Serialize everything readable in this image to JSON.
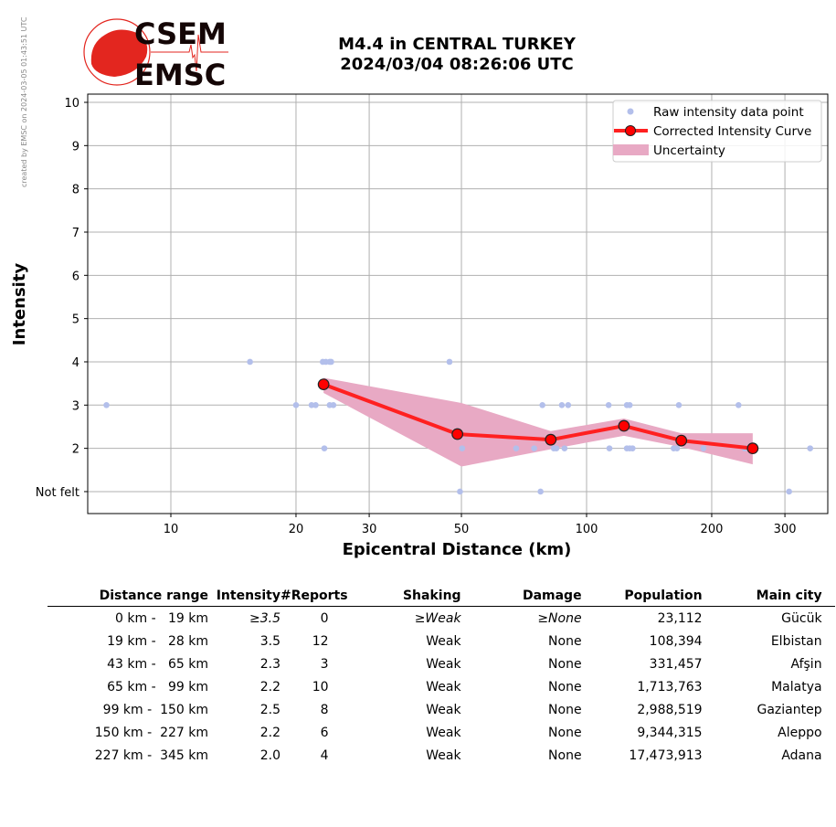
{
  "credit": "created by EMSC on 2024-03-05 01:43:51 UTC",
  "logo": {
    "line1": "CSEM",
    "line2": "EMSC"
  },
  "title": {
    "line1": "M4.4 in CENTRAL TURKEY",
    "line2": "2024/03/04 08:26:06 UTC"
  },
  "colors": {
    "raw": "#b3bfeb",
    "curve": "#ff2020",
    "band": "#e8a9c4",
    "logo": "#e3261f"
  },
  "chart_data": {
    "type": "line",
    "xlabel": "Epicentral Distance (km)",
    "ylabel": "Intensity",
    "xscale": "log",
    "xlim": [
      6.3,
      382
    ],
    "ylim": [
      0.49,
      10.19
    ],
    "xticks": [
      10,
      20,
      30,
      50,
      100,
      200,
      300
    ],
    "xtick_labels": [
      "10",
      "20",
      "30",
      "50",
      "100",
      "200",
      "300"
    ],
    "yticks": [
      1,
      2,
      3,
      4,
      5,
      6,
      7,
      8,
      9,
      10
    ],
    "ytick_labels": [
      "Not felt",
      "2",
      "3",
      "4",
      "5",
      "6",
      "7",
      "8",
      "9",
      "10"
    ],
    "grid": true,
    "legend": {
      "position": "top-right",
      "entries": [
        "Raw intensity data point",
        "Corrected Intensity Curve",
        "Uncertainty"
      ]
    },
    "raw_points": [
      [
        7.0,
        3
      ],
      [
        15.5,
        4
      ],
      [
        20.0,
        3
      ],
      [
        21.8,
        3
      ],
      [
        22.3,
        3
      ],
      [
        23.2,
        4
      ],
      [
        23.6,
        4
      ],
      [
        24.1,
        4
      ],
      [
        24.3,
        4
      ],
      [
        23.4,
        2
      ],
      [
        24.1,
        3
      ],
      [
        24.6,
        3
      ],
      [
        46.8,
        4
      ],
      [
        49.6,
        1
      ],
      [
        50.2,
        2
      ],
      [
        67.7,
        2
      ],
      [
        74.8,
        2
      ],
      [
        77.5,
        1
      ],
      [
        78.3,
        3
      ],
      [
        83.4,
        2
      ],
      [
        84.6,
        2
      ],
      [
        87.2,
        3
      ],
      [
        88.5,
        2
      ],
      [
        90.3,
        3
      ],
      [
        113,
        3
      ],
      [
        113.5,
        2
      ],
      [
        125,
        3
      ],
      [
        127,
        3
      ],
      [
        125,
        2
      ],
      [
        127,
        2
      ],
      [
        129,
        2
      ],
      [
        162,
        2
      ],
      [
        165,
        2
      ],
      [
        166.7,
        3
      ],
      [
        191,
        2
      ],
      [
        232,
        3
      ],
      [
        240,
        2
      ],
      [
        307,
        1
      ],
      [
        345,
        2
      ]
    ],
    "curve": {
      "x": [
        23.3,
        48.9,
        82,
        123,
        169,
        251
      ],
      "y": [
        3.48,
        2.33,
        2.2,
        2.52,
        2.18,
        2.0
      ]
    },
    "uncertainty": {
      "x": [
        23.3,
        50,
        82,
        123,
        169,
        251
      ],
      "upper": [
        3.63,
        3.05,
        2.4,
        2.69,
        2.35,
        2.35
      ],
      "lower": [
        3.28,
        1.58,
        1.98,
        2.29,
        2.03,
        1.63
      ]
    }
  },
  "table": {
    "headers": [
      "Distance range",
      "Intensity",
      "#Reports",
      "Shaking",
      "Damage",
      "Population",
      "Main city"
    ],
    "rows": [
      [
        "0 km -   19 km",
        "≥3.5",
        "0",
        "≥Weak",
        "≥None",
        "23,112",
        "Gücük"
      ],
      [
        "19 km -   28 km",
        "3.5",
        "12",
        "Weak",
        "None",
        "108,394",
        "Elbistan"
      ],
      [
        "43 km -   65 km",
        "2.3",
        "3",
        "Weak",
        "None",
        "331,457",
        "Afşin"
      ],
      [
        "65 km -   99 km",
        "2.2",
        "10",
        "Weak",
        "None",
        "1,713,763",
        "Malatya"
      ],
      [
        "99 km -  150 km",
        "2.5",
        "8",
        "Weak",
        "None",
        "2,988,519",
        "Gaziantep"
      ],
      [
        "150 km -  227 km",
        "2.2",
        "6",
        "Weak",
        "None",
        "9,344,315",
        "Aleppo"
      ],
      [
        "227 km -  345 km",
        "2.0",
        "4",
        "Weak",
        "None",
        "17,473,913",
        "Adana"
      ]
    ]
  }
}
